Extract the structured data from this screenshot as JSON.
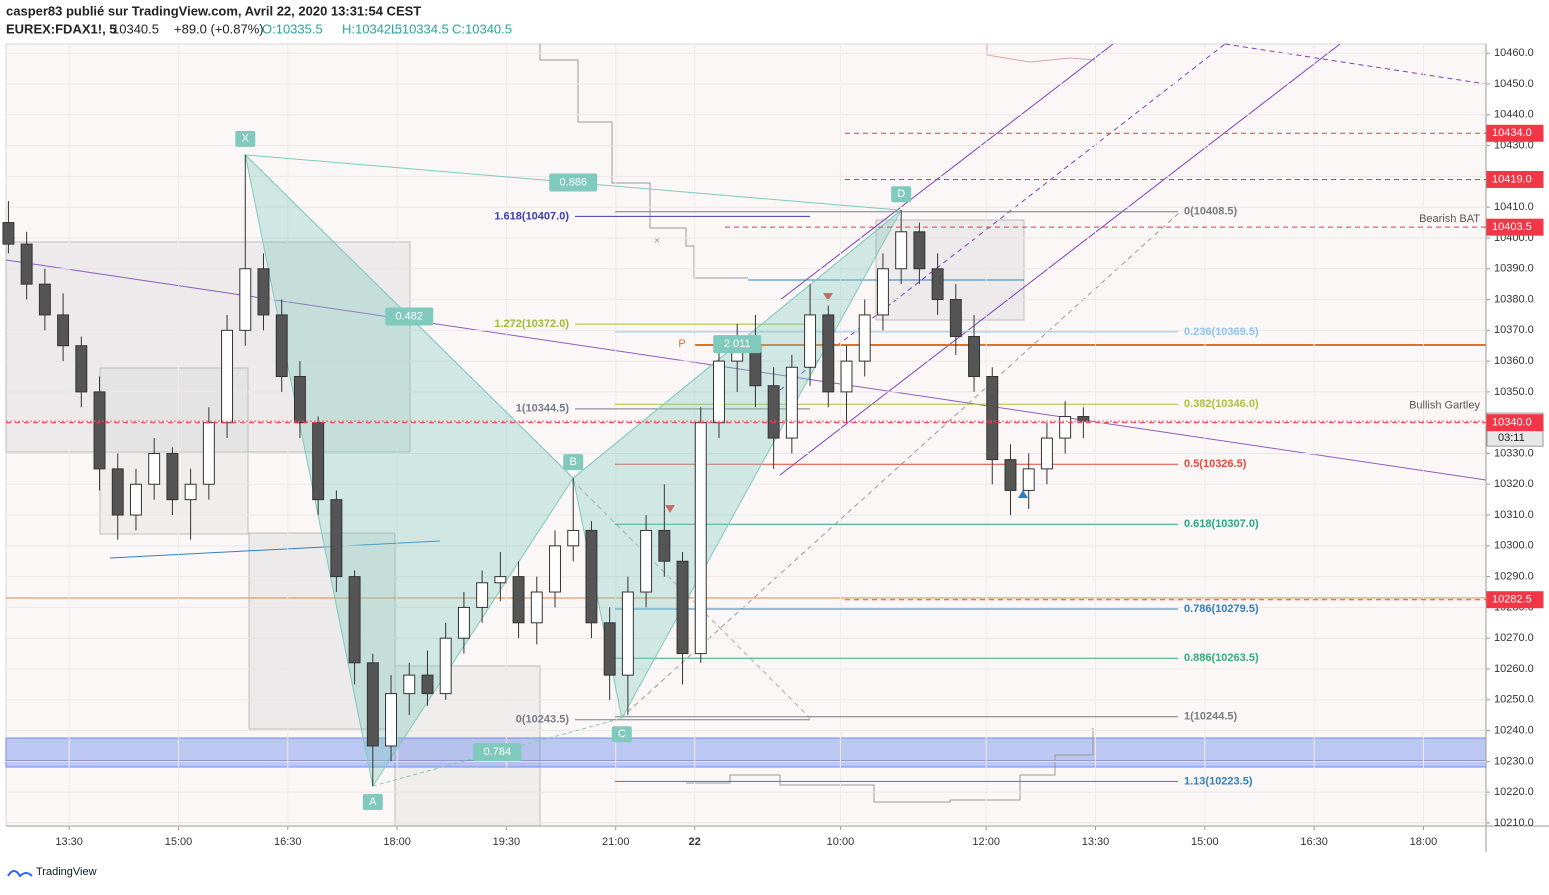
{
  "header": {
    "byline": "casper83 publié sur TradingView.com, Avril 22, 2020 13:31:54 CEST",
    "symbol": "EUREX:FDAX1!, 5",
    "last": "10340.5",
    "change": "+89.0 (+0.87%)",
    "open": "O:10335.5",
    "high": "H:10342.5",
    "low": "L:10334.5",
    "close": "C:10340.5"
  },
  "footer": {
    "brand": "TradingView"
  },
  "chart_data": {
    "type": "candlestick",
    "grid": true,
    "up_color": "#ffffff",
    "down_color": "#555555",
    "xlim": [
      -10.4,
      233.3
    ],
    "ylim": [
      10209,
      10463
    ],
    "xticks": [
      {
        "value": 0,
        "label": "13:30"
      },
      {
        "value": 18,
        "label": "15:00"
      },
      {
        "value": 36,
        "label": "16:30"
      },
      {
        "value": 54,
        "label": "18:00"
      },
      {
        "value": 72,
        "label": "19:30"
      },
      {
        "value": 90,
        "label": "21:00"
      },
      {
        "value": 103,
        "label": "22"
      },
      {
        "value": 127,
        "label": "10:00"
      },
      {
        "value": 151,
        "label": "12:00"
      },
      {
        "value": 169,
        "label": "13:30"
      },
      {
        "value": 187,
        "label": "15:00"
      },
      {
        "value": 205,
        "label": "16:30"
      },
      {
        "value": 223,
        "label": "18:00"
      }
    ],
    "yticks": [
      {
        "value": 10210,
        "label": "10210.0"
      },
      {
        "value": 10220,
        "label": "10220.0"
      },
      {
        "value": 10230,
        "label": "10230.0"
      },
      {
        "value": 10240,
        "label": "10240.0"
      },
      {
        "value": 10250,
        "label": "10250.0"
      },
      {
        "value": 10260,
        "label": "10260.0"
      },
      {
        "value": 10270,
        "label": "10270.0"
      },
      {
        "value": 10280,
        "label": "10280.0"
      },
      {
        "value": 10290,
        "label": "10290.0"
      },
      {
        "value": 10300,
        "label": "10300.0"
      },
      {
        "value": 10310,
        "label": "10310.0"
      },
      {
        "value": 10320,
        "label": "10320.0"
      },
      {
        "value": 10330,
        "label": "10330.0"
      },
      {
        "value": 10340,
        "label": "10340.0"
      },
      {
        "value": 10350,
        "label": "10350.0"
      },
      {
        "value": 10360,
        "label": "10360.0"
      },
      {
        "value": 10370,
        "label": "10370.0"
      },
      {
        "value": 10380,
        "label": "10380.0"
      },
      {
        "value": 10390,
        "label": "10390.0"
      },
      {
        "value": 10400,
        "label": "10400.0"
      },
      {
        "value": 10410,
        "label": "10410.0"
      },
      {
        "value": 10420,
        "label": "10420.0"
      },
      {
        "value": 10430,
        "label": "10430.0"
      },
      {
        "value": 10440,
        "label": "10440.0"
      },
      {
        "value": 10450,
        "label": "10450.0"
      },
      {
        "value": 10460,
        "label": "10460.0"
      }
    ],
    "x": [
      -10,
      -7,
      -4,
      -1,
      2,
      5,
      8,
      11,
      14,
      17,
      20,
      23,
      26,
      29,
      32,
      35,
      38,
      41,
      44,
      47,
      50,
      53,
      56,
      59,
      62,
      65,
      68,
      71,
      74,
      77,
      80,
      83,
      86,
      89,
      92,
      95,
      98,
      101,
      104,
      107,
      110,
      113,
      116,
      119,
      122,
      125,
      128,
      131,
      134,
      137,
      140,
      143,
      146,
      149,
      152,
      155,
      158,
      161,
      164,
      167
    ],
    "open": [
      10405,
      10398,
      10385,
      10375,
      10365,
      10350,
      10325,
      10310,
      10320,
      10330,
      10315,
      10320,
      10340,
      10370,
      10390,
      10375,
      10355,
      10340,
      10315,
      10290,
      10262,
      10235,
      10252,
      10258,
      10252,
      10270,
      10280,
      10288,
      10290,
      10275,
      10285,
      10300,
      10305,
      10275,
      10258,
      10285,
      10305,
      10295,
      10265,
      10340,
      10360,
      10365,
      10352,
      10335,
      10358,
      10375,
      10350,
      10360,
      10375,
      10390,
      10402,
      10390,
      10380,
      10368,
      10355,
      10328,
      10318,
      10325,
      10335,
      10342
    ],
    "high": [
      10412,
      10402,
      10390,
      10382,
      10368,
      10355,
      10330,
      10325,
      10335,
      10332,
      10325,
      10345,
      10375,
      10427,
      10395,
      10380,
      10360,
      10342,
      10318,
      10292,
      10265,
      10258,
      10262,
      10266,
      10275,
      10285,
      10292,
      10298,
      10295,
      10290,
      10305,
      10322,
      10308,
      10280,
      10290,
      10310,
      10320,
      10298,
      10345,
      10368,
      10372,
      10375,
      10358,
      10362,
      10385,
      10378,
      10365,
      10380,
      10395,
      10409,
      10405,
      10395,
      10385,
      10375,
      10358,
      10333,
      10330,
      10340,
      10347,
      10345
    ],
    "low": [
      10395,
      10380,
      10370,
      10360,
      10345,
      10318,
      10302,
      10305,
      10315,
      10310,
      10302,
      10315,
      10335,
      10365,
      10370,
      10350,
      10335,
      10310,
      10285,
      10255,
      10222,
      10230,
      10245,
      10248,
      10250,
      10265,
      10275,
      10282,
      10270,
      10268,
      10280,
      10295,
      10270,
      10250,
      10245,
      10280,
      10290,
      10255,
      10262,
      10335,
      10350,
      10345,
      10325,
      10330,
      10352,
      10345,
      10340,
      10355,
      10370,
      10385,
      10385,
      10375,
      10362,
      10350,
      10320,
      10310,
      10312,
      10320,
      10330,
      10335
    ],
    "close": [
      10398,
      10385,
      10375,
      10365,
      10350,
      10325,
      10310,
      10320,
      10330,
      10315,
      10320,
      10340,
      10370,
      10390,
      10375,
      10355,
      10340,
      10315,
      10290,
      10262,
      10235,
      10252,
      10258,
      10252,
      10270,
      10280,
      10288,
      10290,
      10275,
      10285,
      10300,
      10305,
      10275,
      10258,
      10285,
      10305,
      10295,
      10265,
      10340,
      10360,
      10365,
      10352,
      10335,
      10358,
      10375,
      10350,
      10360,
      10375,
      10390,
      10402,
      10390,
      10380,
      10368,
      10355,
      10328,
      10318,
      10325,
      10335,
      10342,
      10340.5
    ],
    "pattern": {
      "points": [
        {
          "label": "X",
          "x": 29,
          "y": 10427
        },
        {
          "label": "A",
          "x": 50,
          "y": 10222
        },
        {
          "label": "B",
          "x": 83,
          "y": 10322
        },
        {
          "label": "C",
          "x": 91,
          "y": 10244
        },
        {
          "label": "D",
          "x": 137,
          "y": 10409
        }
      ],
      "ratios": [
        0.886,
        0.482,
        0.784,
        2.011
      ],
      "color": "#7fc9bd"
    },
    "fib_left": [
      {
        "label": "1.618(10407.0)",
        "value": 10407.0,
        "color": "#3c3cb4"
      },
      {
        "label": "1.272(10372.0)",
        "value": 10372.0,
        "color": "#9cbb2e"
      },
      {
        "label": "1(10344.5)",
        "value": 10344.5,
        "color": "#787b86"
      },
      {
        "label": "0(10243.5)",
        "value": 10243.5,
        "color": "#787b86"
      }
    ],
    "fib_right": [
      {
        "label": "0(10408.5)",
        "value": 10408.5,
        "color": "#787b86"
      },
      {
        "label": "0.236(10369.5)",
        "value": 10369.5,
        "color": "#8cc4ee"
      },
      {
        "label": "0.382(10346.0)",
        "value": 10346.0,
        "color": "#a8c23a"
      },
      {
        "label": "0.5(10326.5)",
        "value": 10326.5,
        "color": "#e5493a"
      },
      {
        "label": "0.618(10307.0)",
        "value": 10307.0,
        "color": "#23a885"
      },
      {
        "label": "0.786(10279.5)",
        "value": 10279.5,
        "color": "#2f80c2"
      },
      {
        "label": "0.886(10263.5)",
        "value": 10263.5,
        "color": "#2fae79"
      },
      {
        "label": "1(10244.5)",
        "value": 10244.5,
        "color": "#787b86"
      },
      {
        "label": "1.13(10223.5)",
        "value": 10223.5,
        "color": "#2f80c2"
      }
    ],
    "price_tags": [
      {
        "value": 10434,
        "label": "10434.0",
        "color": "#f23645"
      },
      {
        "value": 10419,
        "label": "10419.0",
        "color": "#f23645"
      },
      {
        "value": 10403.5,
        "label": "10403.5",
        "color": "#f23645"
      },
      {
        "value": 10340.5,
        "label": "10340.5",
        "color": "#ffffff"
      },
      {
        "value": 10340,
        "label": "10340.0",
        "color": "#f23645"
      },
      {
        "value": 10282.5,
        "label": "10282.5",
        "color": "#f23645"
      }
    ],
    "countdown": "03:11",
    "annotations": [
      {
        "label": "Bearish BAT",
        "value": 10403.5
      },
      {
        "label": "Bullish Gartley",
        "value": 10343
      },
      {
        "label": "P",
        "value": 10365.5
      }
    ]
  }
}
